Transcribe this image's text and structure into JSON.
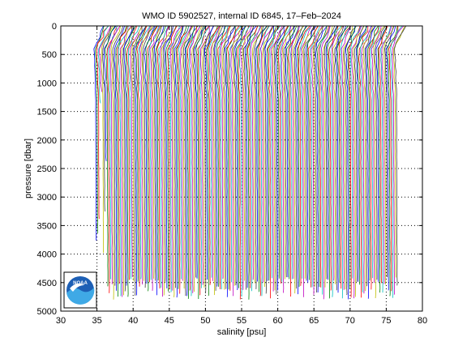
{
  "chart_data": {
    "type": "line",
    "title": "WMO ID 5902527, internal ID 6845, 17–Feb–2024",
    "xlabel": "salinity [psu]",
    "ylabel": "pressure [dbar]",
    "xlim": [
      30,
      80
    ],
    "ylim": [
      5000,
      0
    ],
    "y_reversed": true,
    "grid": true,
    "grid_style": "dotted",
    "xticks": [
      30,
      35,
      40,
      45,
      50,
      55,
      60,
      65,
      70,
      75,
      80
    ],
    "yticks": [
      0,
      500,
      1000,
      1500,
      2000,
      2500,
      3000,
      3500,
      4000,
      4500,
      5000
    ],
    "profile_offset_psu": 0.2,
    "series_colors": [
      "#0000ff",
      "#008000",
      "#ff0000",
      "#00bfbf",
      "#bf00bf",
      "#bfbf00",
      "#404040"
    ],
    "profiles": {
      "count": 210,
      "first_surface_salinity": 34.9,
      "last_surface_salinity": 76.5,
      "surface_pressure": 0,
      "typical_max_pressure": 4650
    },
    "logo": {
      "text": "NOAA",
      "icon": "noaa-logo-icon"
    }
  }
}
